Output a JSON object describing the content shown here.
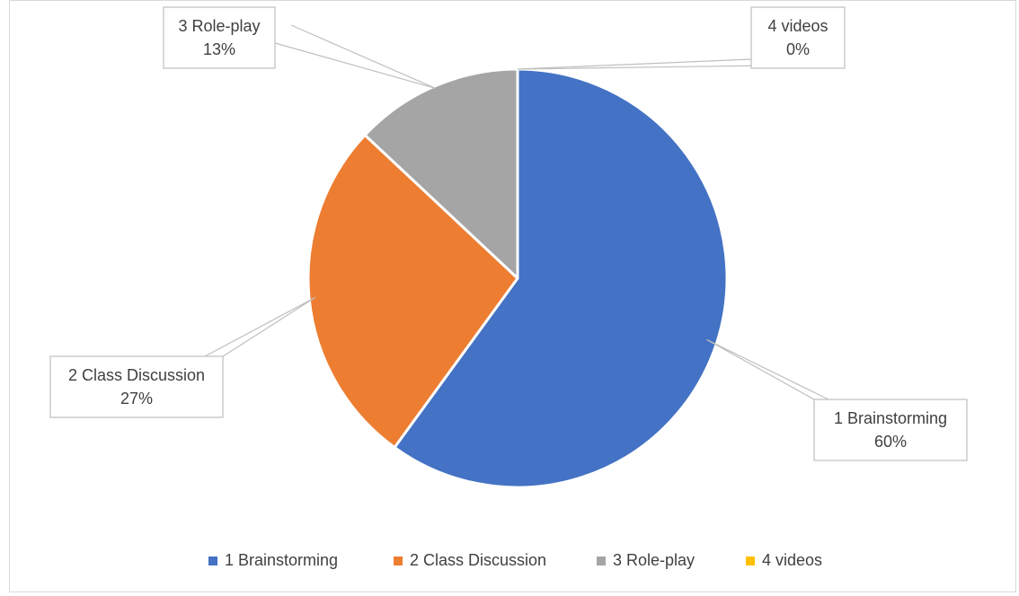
{
  "chart_data": {
    "type": "pie",
    "title": "",
    "categories": [
      "1 Brainstorming",
      "2 Class Discussion",
      "3 Role-play",
      "4 videos"
    ],
    "values": [
      60,
      27,
      13,
      0
    ],
    "percent_labels": [
      "60%",
      "27%",
      "13%",
      "0%"
    ],
    "colors": [
      "#4472C4",
      "#ED7D31",
      "#A5A5A5",
      "#FFC000"
    ],
    "data_labels": "callouts with category name and percentage",
    "legend": {
      "position": "bottom",
      "entries": [
        "1 Brainstorming",
        "2 Class Discussion",
        "3 Role-play",
        "4 videos"
      ]
    }
  }
}
